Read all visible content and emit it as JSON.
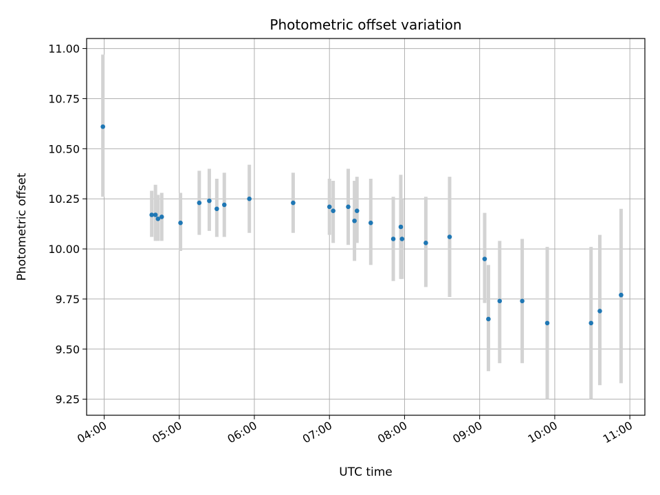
{
  "chart_data": {
    "type": "scatter",
    "title": "Photometric offset variation",
    "xlabel": "UTC time",
    "ylabel": "Photometric offset",
    "grid": true,
    "xlim": [
      "03:46",
      "11:12"
    ],
    "ylim": [
      9.17,
      11.05
    ],
    "xticks": [
      "04:00",
      "05:00",
      "06:00",
      "07:00",
      "08:00",
      "09:00",
      "10:00",
      "11:00"
    ],
    "yticks": [
      "9.25",
      "9.50",
      "9.75",
      "10.00",
      "10.25",
      "10.50",
      "10.75",
      "11.00"
    ],
    "series": [
      {
        "colors": {
          "marker": "#1f77b4",
          "errorbar": "#d3d3d3"
        },
        "points": [
          {
            "x": "03:59",
            "y": 10.61,
            "ylow": 10.26,
            "yhigh": 10.97
          },
          {
            "x": "04:38",
            "y": 10.17,
            "ylow": 10.06,
            "yhigh": 10.29
          },
          {
            "x": "04:41",
            "y": 10.17,
            "ylow": 10.04,
            "yhigh": 10.32
          },
          {
            "x": "04:43",
            "y": 10.15,
            "ylow": 10.04,
            "yhigh": 10.27
          },
          {
            "x": "04:46",
            "y": 10.16,
            "ylow": 10.04,
            "yhigh": 10.28
          },
          {
            "x": "05:01",
            "y": 10.13,
            "ylow": 9.99,
            "yhigh": 10.28
          },
          {
            "x": "05:16",
            "y": 10.23,
            "ylow": 10.07,
            "yhigh": 10.39
          },
          {
            "x": "05:24",
            "y": 10.24,
            "ylow": 10.09,
            "yhigh": 10.4
          },
          {
            "x": "05:30",
            "y": 10.2,
            "ylow": 10.06,
            "yhigh": 10.35
          },
          {
            "x": "05:36",
            "y": 10.22,
            "ylow": 10.06,
            "yhigh": 10.38
          },
          {
            "x": "05:56",
            "y": 10.25,
            "ylow": 10.08,
            "yhigh": 10.42
          },
          {
            "x": "06:31",
            "y": 10.23,
            "ylow": 10.08,
            "yhigh": 10.38
          },
          {
            "x": "07:00",
            "y": 10.21,
            "ylow": 10.07,
            "yhigh": 10.35
          },
          {
            "x": "07:03",
            "y": 10.19,
            "ylow": 10.03,
            "yhigh": 10.34
          },
          {
            "x": "07:15",
            "y": 10.21,
            "ylow": 10.02,
            "yhigh": 10.4
          },
          {
            "x": "07:20",
            "y": 10.14,
            "ylow": 9.94,
            "yhigh": 10.34
          },
          {
            "x": "07:22",
            "y": 10.19,
            "ylow": 10.03,
            "yhigh": 10.36
          },
          {
            "x": "07:33",
            "y": 10.13,
            "ylow": 9.92,
            "yhigh": 10.35
          },
          {
            "x": "07:51",
            "y": 10.05,
            "ylow": 9.84,
            "yhigh": 10.26
          },
          {
            "x": "07:57",
            "y": 10.11,
            "ylow": 9.85,
            "yhigh": 10.37
          },
          {
            "x": "07:58",
            "y": 10.05,
            "ylow": 9.85,
            "yhigh": 10.25
          },
          {
            "x": "08:17",
            "y": 10.03,
            "ylow": 9.81,
            "yhigh": 10.26
          },
          {
            "x": "08:36",
            "y": 10.06,
            "ylow": 9.76,
            "yhigh": 10.36
          },
          {
            "x": "09:04",
            "y": 9.95,
            "ylow": 9.73,
            "yhigh": 10.18
          },
          {
            "x": "09:07",
            "y": 9.65,
            "ylow": 9.39,
            "yhigh": 9.92
          },
          {
            "x": "09:16",
            "y": 9.74,
            "ylow": 9.43,
            "yhigh": 10.04
          },
          {
            "x": "09:34",
            "y": 9.74,
            "ylow": 9.43,
            "yhigh": 10.05
          },
          {
            "x": "09:54",
            "y": 9.63,
            "ylow": 9.25,
            "yhigh": 10.01
          },
          {
            "x": "10:29",
            "y": 9.63,
            "ylow": 9.25,
            "yhigh": 10.01
          },
          {
            "x": "10:36",
            "y": 9.69,
            "ylow": 9.32,
            "yhigh": 10.07
          },
          {
            "x": "10:53",
            "y": 9.77,
            "ylow": 9.33,
            "yhigh": 10.2
          }
        ]
      }
    ]
  }
}
